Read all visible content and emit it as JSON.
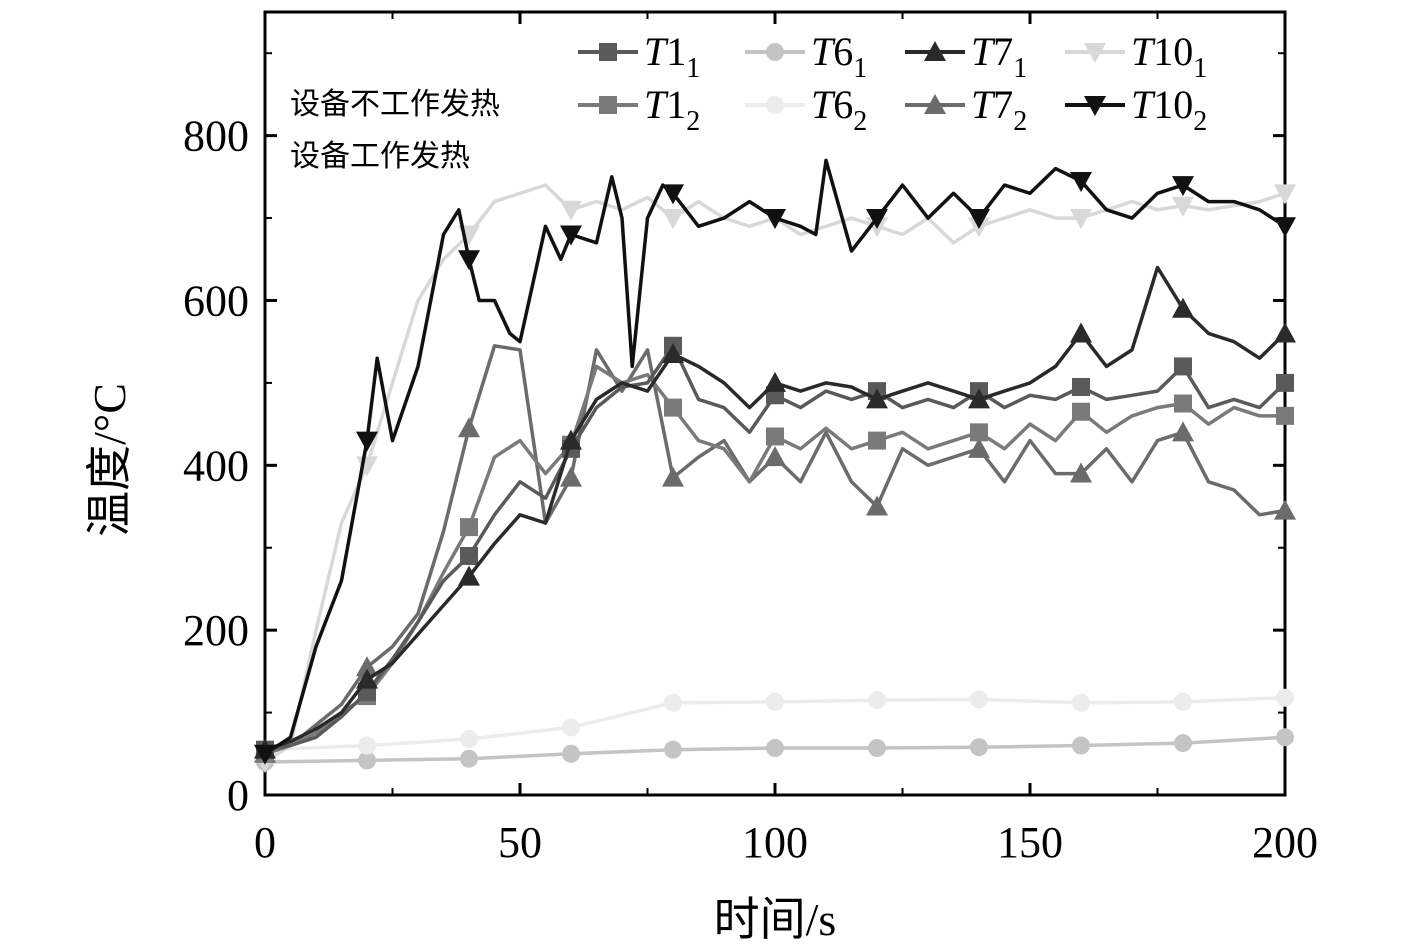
{
  "chart_data": {
    "type": "line",
    "title": "",
    "xlabel": "时间/s",
    "ylabel": "温度/°C",
    "xlim": [
      0,
      200
    ],
    "ylim": [
      0,
      950
    ],
    "xticks": [
      0,
      50,
      100,
      150,
      200
    ],
    "yticks": [
      0,
      200,
      400,
      600,
      800
    ],
    "grid": false,
    "legend_position": "top-right",
    "annotations": [
      "设备不工作发热",
      "设备工作发热"
    ],
    "series": [
      {
        "name": "T1₁",
        "base": "T",
        "num": "1",
        "sub": "1",
        "color": "#5a5a5a",
        "marker": "square",
        "x": [
          0,
          5,
          10,
          15,
          20,
          25,
          30,
          35,
          40,
          45,
          50,
          55,
          60,
          65,
          70,
          75,
          80,
          85,
          90,
          95,
          100,
          105,
          110,
          115,
          120,
          125,
          130,
          135,
          140,
          145,
          150,
          155,
          160,
          165,
          170,
          175,
          180,
          185,
          190,
          195,
          200
        ],
        "y": [
          55,
          60,
          70,
          95,
          125,
          165,
          210,
          260,
          290,
          340,
          380,
          360,
          420,
          470,
          495,
          500,
          545,
          480,
          470,
          440,
          485,
          470,
          490,
          480,
          490,
          470,
          480,
          470,
          490,
          470,
          485,
          480,
          495,
          480,
          485,
          490,
          520,
          470,
          480,
          470,
          500
        ]
      },
      {
        "name": "T1₂",
        "base": "T",
        "num": "1",
        "sub": "2",
        "color": "#7a7a7a",
        "marker": "square",
        "x": [
          0,
          5,
          10,
          15,
          20,
          25,
          30,
          35,
          40,
          45,
          50,
          55,
          60,
          65,
          70,
          75,
          80,
          85,
          90,
          95,
          100,
          105,
          110,
          115,
          120,
          125,
          130,
          135,
          140,
          145,
          150,
          155,
          160,
          165,
          170,
          175,
          180,
          185,
          190,
          195,
          200
        ],
        "y": [
          50,
          60,
          75,
          100,
          120,
          160,
          210,
          270,
          325,
          410,
          430,
          390,
          425,
          520,
          500,
          510,
          470,
          430,
          420,
          380,
          435,
          420,
          445,
          420,
          430,
          440,
          420,
          430,
          440,
          420,
          450,
          430,
          465,
          440,
          460,
          470,
          475,
          450,
          470,
          460,
          460
        ]
      },
      {
        "name": "T6₁",
        "base": "T",
        "num": "6",
        "sub": "1",
        "color": "#c4c4c4",
        "marker": "circle",
        "x": [
          0,
          20,
          40,
          60,
          80,
          100,
          120,
          140,
          160,
          180,
          200
        ],
        "y": [
          40,
          42,
          44,
          50,
          55,
          57,
          57,
          58,
          60,
          63,
          70
        ]
      },
      {
        "name": "T6₂",
        "base": "T",
        "num": "6",
        "sub": "2",
        "color": "#ececec",
        "marker": "circle",
        "x": [
          0,
          20,
          40,
          60,
          80,
          100,
          120,
          140,
          160,
          180,
          200
        ],
        "y": [
          55,
          60,
          68,
          82,
          112,
          113,
          115,
          116,
          112,
          113,
          118
        ]
      },
      {
        "name": "T7₁",
        "base": "T",
        "num": "7",
        "sub": "1",
        "color": "#2a2a2a",
        "marker": "triangle-up",
        "x": [
          0,
          5,
          10,
          15,
          20,
          25,
          30,
          35,
          40,
          45,
          50,
          55,
          60,
          65,
          70,
          75,
          80,
          85,
          90,
          95,
          100,
          105,
          110,
          115,
          120,
          125,
          130,
          135,
          140,
          145,
          150,
          155,
          160,
          165,
          170,
          175,
          180,
          185,
          190,
          195,
          200
        ],
        "y": [
          55,
          65,
          80,
          100,
          140,
          160,
          195,
          230,
          265,
          305,
          340,
          330,
          430,
          480,
          500,
          490,
          535,
          520,
          500,
          470,
          500,
          490,
          500,
          495,
          480,
          490,
          500,
          490,
          480,
          490,
          500,
          520,
          560,
          520,
          540,
          640,
          590,
          560,
          550,
          530,
          560
        ]
      },
      {
        "name": "T7₂",
        "base": "T",
        "num": "7",
        "sub": "2",
        "color": "#6b6b6b",
        "marker": "triangle-up",
        "x": [
          0,
          5,
          10,
          15,
          20,
          25,
          30,
          35,
          40,
          45,
          50,
          55,
          60,
          65,
          70,
          75,
          80,
          85,
          90,
          95,
          100,
          105,
          110,
          115,
          120,
          125,
          130,
          135,
          140,
          145,
          150,
          155,
          160,
          165,
          170,
          175,
          180,
          185,
          190,
          195,
          200
        ],
        "y": [
          50,
          60,
          85,
          110,
          155,
          180,
          220,
          320,
          445,
          545,
          540,
          330,
          385,
          540,
          490,
          540,
          385,
          410,
          430,
          380,
          410,
          380,
          440,
          380,
          350,
          420,
          400,
          410,
          420,
          380,
          430,
          390,
          390,
          420,
          380,
          430,
          440,
          380,
          370,
          340,
          345
        ]
      },
      {
        "name": "T10₁",
        "base": "T",
        "num": "10",
        "sub": "1",
        "color": "#d8d8d8",
        "marker": "triangle-down",
        "x": [
          0,
          5,
          10,
          15,
          20,
          25,
          30,
          35,
          40,
          45,
          50,
          55,
          60,
          65,
          70,
          75,
          80,
          85,
          90,
          95,
          100,
          105,
          110,
          115,
          120,
          125,
          130,
          135,
          140,
          145,
          150,
          155,
          160,
          165,
          170,
          175,
          180,
          185,
          190,
          195,
          200
        ],
        "y": [
          40,
          60,
          200,
          330,
          400,
          500,
          600,
          650,
          680,
          720,
          730,
          740,
          710,
          720,
          710,
          725,
          700,
          720,
          700,
          690,
          700,
          680,
          690,
          700,
          690,
          680,
          700,
          670,
          690,
          700,
          710,
          700,
          700,
          710,
          720,
          710,
          715,
          710,
          715,
          720,
          730
        ]
      },
      {
        "name": "T10₂",
        "base": "T",
        "num": "10",
        "sub": "2",
        "color": "#111111",
        "marker": "triangle-down",
        "x": [
          0,
          5,
          10,
          15,
          20,
          22,
          25,
          30,
          35,
          38,
          40,
          42,
          45,
          48,
          50,
          55,
          58,
          60,
          65,
          68,
          70,
          72,
          75,
          78,
          80,
          85,
          90,
          95,
          100,
          105,
          108,
          110,
          115,
          120,
          125,
          130,
          135,
          140,
          145,
          150,
          155,
          160,
          165,
          170,
          175,
          180,
          185,
          190,
          195,
          200
        ],
        "y": [
          50,
          70,
          180,
          260,
          430,
          530,
          430,
          520,
          680,
          710,
          650,
          600,
          600,
          560,
          550,
          690,
          650,
          680,
          670,
          750,
          700,
          520,
          700,
          740,
          730,
          690,
          700,
          720,
          700,
          690,
          680,
          770,
          660,
          700,
          740,
          700,
          730,
          700,
          740,
          730,
          760,
          745,
          710,
          700,
          730,
          740,
          720,
          720,
          710,
          690
        ]
      }
    ]
  }
}
